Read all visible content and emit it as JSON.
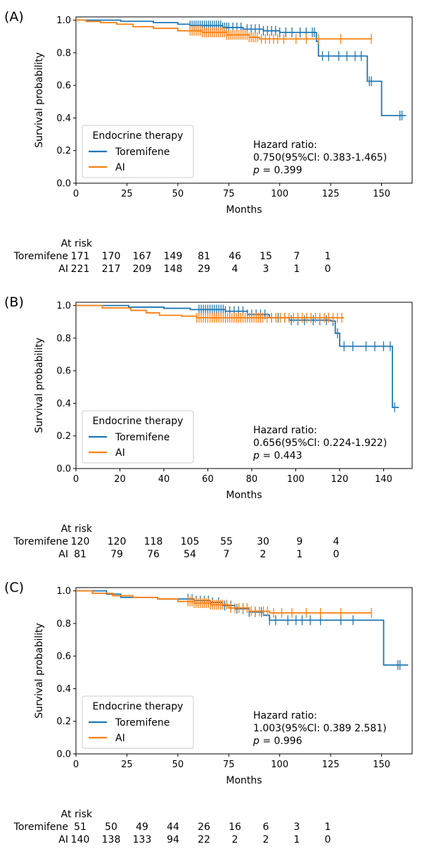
{
  "colors": {
    "toremifene": "#1f77b4",
    "ai": "#ff7f0e",
    "axis": "#000000",
    "legend_border": "#cccccc"
  },
  "chart_data": [
    {
      "type": "line",
      "panel_label": "(A)",
      "xlabel": "Months",
      "ylabel": "Survival probability",
      "xlim": [
        0,
        165
      ],
      "ylim": [
        0,
        1.02
      ],
      "xticks": [
        0,
        25,
        50,
        75,
        100,
        125,
        150
      ],
      "yticks": [
        0.0,
        0.2,
        0.4,
        0.6,
        0.8,
        1.0
      ],
      "grid": false,
      "legend": {
        "title": "Endocrine therapy",
        "placement": "bottom-left"
      },
      "annotation": {
        "line1": "Hazard ratio:",
        "line2": "0.750(95%Cl: 0.383-1.465)",
        "p_label": "p",
        "p_value": "= 0.399"
      },
      "series": [
        {
          "name": "Toremifene",
          "steps": [
            [
              0,
              1.0
            ],
            [
              22,
              0.993
            ],
            [
              38,
              0.985
            ],
            [
              50,
              0.975
            ],
            [
              56,
              0.967
            ],
            [
              72,
              0.955
            ],
            [
              82,
              0.945
            ],
            [
              92,
              0.935
            ],
            [
              100,
              0.925
            ],
            [
              118,
              0.87
            ],
            [
              119,
              0.78
            ],
            [
              143,
              0.625
            ],
            [
              150,
              0.415
            ],
            [
              162,
              0.415
            ]
          ],
          "censors": [
            56,
            57,
            58,
            59,
            60,
            61,
            62,
            63,
            64,
            65,
            66,
            67,
            68,
            69,
            70,
            71,
            72,
            73,
            74,
            75,
            77,
            79,
            81,
            84,
            86,
            88,
            90,
            92,
            94,
            96,
            98,
            100,
            103,
            106,
            110,
            113,
            116,
            117,
            121,
            124,
            129,
            133,
            137,
            140,
            144,
            145,
            159,
            160
          ]
        },
        {
          "name": "AI",
          "steps": [
            [
              0,
              1.0
            ],
            [
              5,
              0.992
            ],
            [
              12,
              0.985
            ],
            [
              20,
              0.975
            ],
            [
              28,
              0.96
            ],
            [
              38,
              0.95
            ],
            [
              50,
              0.935
            ],
            [
              62,
              0.925
            ],
            [
              74,
              0.91
            ],
            [
              85,
              0.895
            ],
            [
              90,
              0.885
            ],
            [
              145,
              0.885
            ]
          ],
          "censors": [
            56,
            57,
            58,
            59,
            60,
            61,
            62,
            63,
            64,
            65,
            66,
            67,
            68,
            69,
            70,
            71,
            72,
            73,
            74,
            75,
            76,
            77,
            78,
            79,
            80,
            81,
            82,
            83,
            84,
            85,
            86,
            87,
            88,
            89,
            91,
            93,
            95,
            97,
            99,
            102,
            108,
            113,
            119,
            130,
            145
          ]
        }
      ],
      "at_risk": {
        "title": "At risk",
        "rows": [
          {
            "name": "Toremifene",
            "values": [
              "171",
              "170",
              "167",
              "149",
              "81",
              "46",
              "15",
              "7",
              "1"
            ]
          },
          {
            "name": "AI",
            "values": [
              "221",
              "217",
              "209",
              "148",
              "29",
              "4",
              "3",
              "1",
              "0"
            ]
          }
        ]
      }
    },
    {
      "type": "line",
      "panel_label": "(B)",
      "xlabel": "Months",
      "ylabel": "Survival probability",
      "xlim": [
        0,
        153
      ],
      "ylim": [
        0,
        1.02
      ],
      "xticks": [
        0,
        20,
        40,
        60,
        80,
        100,
        120,
        140
      ],
      "yticks": [
        0.0,
        0.2,
        0.4,
        0.6,
        0.8,
        1.0
      ],
      "grid": false,
      "legend": {
        "title": "Endocrine therapy",
        "placement": "bottom-left"
      },
      "annotation": {
        "line1": "Hazard ratio:",
        "line2": "0.656(95%Cl: 0.224-1.922)",
        "p_label": "p",
        "p_value": "= 0.443"
      },
      "series": [
        {
          "name": "Toremifene",
          "steps": [
            [
              0,
              1.0
            ],
            [
              24,
              0.99
            ],
            [
              40,
              0.983
            ],
            [
              52,
              0.975
            ],
            [
              68,
              0.965
            ],
            [
              78,
              0.945
            ],
            [
              88,
              0.925
            ],
            [
              97,
              0.91
            ],
            [
              116,
              0.905
            ],
            [
              118,
              0.83
            ],
            [
              120,
              0.75
            ],
            [
              144,
              0.375
            ],
            [
              147,
              0.375
            ]
          ],
          "censors": [
            56,
            57,
            58,
            59,
            60,
            61,
            62,
            63,
            64,
            65,
            66,
            67,
            68,
            70,
            72,
            74,
            76,
            78,
            80,
            82,
            84,
            86,
            89,
            92,
            95,
            98,
            101,
            104,
            108,
            111,
            114,
            117,
            119,
            122,
            126,
            132,
            136,
            140,
            143,
            145
          ]
        },
        {
          "name": "AI",
          "steps": [
            [
              0,
              1.0
            ],
            [
              12,
              0.985
            ],
            [
              25,
              0.97
            ],
            [
              32,
              0.955
            ],
            [
              38,
              0.94
            ],
            [
              48,
              0.935
            ],
            [
              55,
              0.925
            ],
            [
              122,
              0.925
            ]
          ],
          "censors": [
            55,
            56,
            57,
            58,
            59,
            60,
            61,
            62,
            63,
            64,
            65,
            66,
            67,
            68,
            69,
            70,
            71,
            72,
            73,
            74,
            75,
            76,
            77,
            78,
            79,
            80,
            81,
            82,
            83,
            84,
            85,
            87,
            89,
            91,
            93,
            95,
            97,
            99,
            101,
            103,
            105,
            107,
            109,
            111,
            113,
            115,
            117,
            119,
            121
          ]
        }
      ],
      "at_risk": {
        "title": "At risk",
        "rows": [
          {
            "name": "Toremifene",
            "values": [
              "120",
              "120",
              "118",
              "105",
              "55",
              "30",
              "9",
              "4"
            ]
          },
          {
            "name": "AI",
            "values": [
              "81",
              "79",
              "76",
              "54",
              "7",
              "2",
              "1",
              "0"
            ]
          }
        ]
      }
    },
    {
      "type": "line",
      "panel_label": "(C)",
      "xlabel": "Months",
      "ylabel": "Survival probability",
      "xlim": [
        0,
        165
      ],
      "ylim": [
        0,
        1.02
      ],
      "xticks": [
        0,
        25,
        50,
        75,
        100,
        125,
        150
      ],
      "yticks": [
        0.0,
        0.2,
        0.4,
        0.6,
        0.8,
        1.0
      ],
      "grid": false,
      "legend": {
        "title": "Endocrine therapy",
        "placement": "bottom-left"
      },
      "annotation": {
        "line1": "Hazard ratio:",
        "line2": "1.003(95%Cl: 0.389 2.581)",
        "p_label": "p",
        "p_value": "= 0.996"
      },
      "series": [
        {
          "name": "Toremifene",
          "steps": [
            [
              0,
              1.0
            ],
            [
              15,
              0.98
            ],
            [
              22,
              0.96
            ],
            [
              40,
              0.95
            ],
            [
              58,
              0.94
            ],
            [
              66,
              0.93
            ],
            [
              72,
              0.91
            ],
            [
              78,
              0.89
            ],
            [
              85,
              0.87
            ],
            [
              92,
              0.85
            ],
            [
              95,
              0.82
            ],
            [
              150,
              0.82
            ],
            [
              151,
              0.545
            ],
            [
              163,
              0.545
            ]
          ],
          "censors": [
            55,
            57,
            59,
            61,
            63,
            65,
            67,
            70,
            73,
            76,
            79,
            82,
            85,
            88,
            91,
            95,
            98,
            104,
            108,
            111,
            115,
            120,
            130,
            136,
            158,
            159
          ]
        },
        {
          "name": "AI",
          "steps": [
            [
              0,
              1.0
            ],
            [
              8,
              0.985
            ],
            [
              18,
              0.97
            ],
            [
              28,
              0.96
            ],
            [
              40,
              0.95
            ],
            [
              50,
              0.935
            ],
            [
              58,
              0.925
            ],
            [
              66,
              0.915
            ],
            [
              75,
              0.895
            ],
            [
              85,
              0.875
            ],
            [
              95,
              0.865
            ],
            [
              145,
              0.865
            ]
          ],
          "censors": [
            55,
            56,
            57,
            58,
            59,
            60,
            61,
            62,
            63,
            64,
            65,
            66,
            67,
            68,
            69,
            70,
            71,
            72,
            74,
            76,
            78,
            80,
            82,
            84,
            86,
            88,
            90,
            92,
            94,
            97,
            101,
            106,
            113,
            120,
            130,
            145
          ]
        }
      ],
      "at_risk": {
        "title": "At risk",
        "rows": [
          {
            "name": "Toremifene",
            "values": [
              "51",
              "50",
              "49",
              "44",
              "26",
              "16",
              "6",
              "3",
              "1"
            ]
          },
          {
            "name": "AI",
            "values": [
              "140",
              "138",
              "133",
              "94",
              "22",
              "2",
              "2",
              "1",
              "0"
            ]
          }
        ]
      }
    }
  ]
}
